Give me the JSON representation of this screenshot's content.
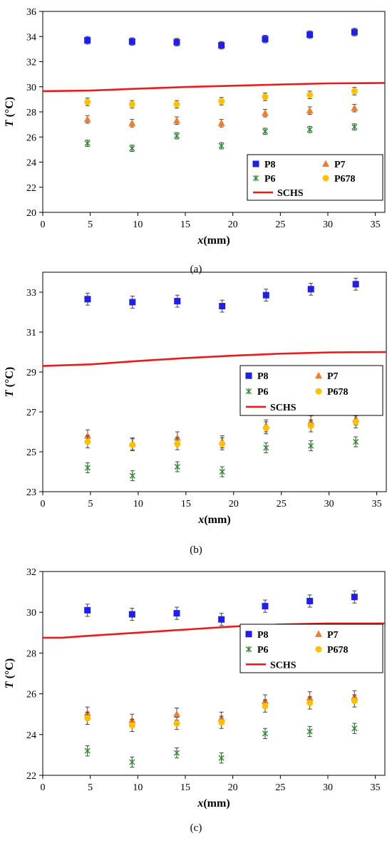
{
  "colors": {
    "P8": "#1f1fe6",
    "P7": "#ed7d31",
    "P6": "#2e8b2e",
    "P678": "#ffc000",
    "SCHS": "#e81c1c",
    "errorbar": "#444444"
  },
  "chart_data": [
    {
      "type": "scatter",
      "panel": "(a)",
      "caption": "(a)",
      "ylabel_var": "T",
      "ylabel_unit": " (°C)",
      "xlabel_var": "x",
      "xlabel_unit": "(mm)",
      "xlim": [
        0,
        36
      ],
      "ylim": [
        20,
        36
      ],
      "xticks": [
        0,
        5,
        10,
        15,
        20,
        25,
        30,
        35
      ],
      "yticks": [
        20,
        22,
        24,
        26,
        28,
        30,
        32,
        34,
        36
      ],
      "x": [
        4.7,
        9.4,
        14.1,
        18.8,
        23.4,
        28.1,
        32.8
      ],
      "series": [
        {
          "name": "P8",
          "marker": "square",
          "values": [
            33.7,
            33.6,
            33.55,
            33.3,
            33.8,
            34.15,
            34.35
          ],
          "err": [
            0.3,
            0.3,
            0.3,
            0.3,
            0.3,
            0.3,
            0.3
          ]
        },
        {
          "name": "P7",
          "marker": "triangle",
          "values": [
            27.4,
            27.1,
            27.3,
            27.1,
            27.9,
            28.1,
            28.3
          ],
          "err": [
            0.3,
            0.3,
            0.3,
            0.3,
            0.3,
            0.3,
            0.3
          ]
        },
        {
          "name": "P6",
          "marker": "star",
          "values": [
            25.5,
            25.1,
            26.1,
            25.3,
            26.45,
            26.6,
            26.8
          ],
          "err": [
            0.25,
            0.25,
            0.25,
            0.25,
            0.25,
            0.25,
            0.25
          ]
        },
        {
          "name": "P678",
          "marker": "circle",
          "values": [
            28.8,
            28.6,
            28.6,
            28.85,
            29.2,
            29.35,
            29.65
          ],
          "err": [
            0.3,
            0.3,
            0.3,
            0.3,
            0.3,
            0.3,
            0.3
          ]
        }
      ],
      "line": {
        "name": "SCHS",
        "x": [
          0,
          5,
          10,
          15,
          20,
          25,
          30,
          36
        ],
        "y": [
          29.65,
          29.7,
          29.85,
          29.98,
          30.08,
          30.18,
          30.27,
          30.3
        ]
      },
      "legend": {
        "position": "bottom-right",
        "items": [
          "P8",
          "P7",
          "P6",
          "P678",
          "SCHS"
        ]
      }
    },
    {
      "type": "scatter",
      "panel": "(b)",
      "caption": "(b)",
      "ylabel_var": "T",
      "ylabel_unit": " (°C)",
      "xlabel_var": "x",
      "xlabel_unit": "(mm)",
      "xlim": [
        0,
        36
      ],
      "ylim": [
        23,
        34
      ],
      "xticks": [
        0,
        5,
        10,
        15,
        20,
        25,
        30,
        35
      ],
      "yticks": [
        23,
        25,
        27,
        29,
        31,
        33
      ],
      "x": [
        4.7,
        9.4,
        14.1,
        18.8,
        23.4,
        28.1,
        32.8
      ],
      "series": [
        {
          "name": "P8",
          "marker": "square",
          "values": [
            32.65,
            32.5,
            32.55,
            32.3,
            32.85,
            33.15,
            33.4
          ],
          "err": [
            0.3,
            0.3,
            0.3,
            0.3,
            0.3,
            0.3,
            0.3
          ]
        },
        {
          "name": "P7",
          "marker": "triangle",
          "values": [
            25.8,
            25.4,
            25.7,
            25.5,
            26.3,
            26.5,
            26.65
          ],
          "err": [
            0.3,
            0.3,
            0.3,
            0.3,
            0.3,
            0.3,
            0.3
          ]
        },
        {
          "name": "P6",
          "marker": "star",
          "values": [
            24.2,
            23.8,
            24.25,
            24.0,
            25.2,
            25.3,
            25.5
          ],
          "err": [
            0.25,
            0.25,
            0.25,
            0.25,
            0.25,
            0.25,
            0.25
          ]
        },
        {
          "name": "P678",
          "marker": "circle",
          "values": [
            25.5,
            25.35,
            25.4,
            25.4,
            26.2,
            26.3,
            26.5
          ],
          "err": [
            0.3,
            0.3,
            0.3,
            0.3,
            0.3,
            0.3,
            0.3
          ]
        }
      ],
      "line": {
        "name": "SCHS",
        "x": [
          0,
          5,
          10,
          15,
          20,
          25,
          30,
          36
        ],
        "y": [
          29.3,
          29.38,
          29.55,
          29.7,
          29.82,
          29.92,
          29.98,
          30.0
        ]
      },
      "legend": {
        "position": "right",
        "items": [
          "P8",
          "P7",
          "P6",
          "P678",
          "SCHS"
        ]
      }
    },
    {
      "type": "scatter",
      "panel": "(c)",
      "caption": "(c)",
      "ylabel_var": "T",
      "ylabel_unit": " (°C)",
      "xlabel_var": "x",
      "xlabel_unit": "(mm)",
      "xlim": [
        0,
        36
      ],
      "ylim": [
        22,
        32
      ],
      "xticks": [
        0,
        5,
        10,
        15,
        20,
        25,
        30,
        35
      ],
      "yticks": [
        22,
        24,
        26,
        28,
        30,
        32
      ],
      "x": [
        4.7,
        9.4,
        14.1,
        18.8,
        23.4,
        28.1,
        32.8
      ],
      "series": [
        {
          "name": "P8",
          "marker": "square",
          "values": [
            30.1,
            29.9,
            29.95,
            29.65,
            30.3,
            30.55,
            30.75
          ],
          "err": [
            0.3,
            0.3,
            0.3,
            0.3,
            0.3,
            0.3,
            0.3
          ]
        },
        {
          "name": "P7",
          "marker": "triangle",
          "values": [
            25.05,
            24.7,
            25.0,
            24.8,
            25.65,
            25.8,
            25.85
          ],
          "err": [
            0.3,
            0.3,
            0.3,
            0.3,
            0.3,
            0.3,
            0.3
          ]
        },
        {
          "name": "P6",
          "marker": "star",
          "values": [
            23.2,
            22.65,
            23.1,
            22.85,
            24.05,
            24.15,
            24.3
          ],
          "err": [
            0.25,
            0.25,
            0.25,
            0.25,
            0.25,
            0.25,
            0.25
          ]
        },
        {
          "name": "P678",
          "marker": "circle",
          "values": [
            24.8,
            24.45,
            24.55,
            24.6,
            25.4,
            25.55,
            25.65
          ],
          "err": [
            0.3,
            0.3,
            0.3,
            0.3,
            0.3,
            0.3,
            0.3
          ]
        }
      ],
      "line": {
        "name": "SCHS",
        "x": [
          0,
          2,
          5,
          10,
          15,
          20,
          25,
          30,
          36
        ],
        "y": [
          28.75,
          28.75,
          28.85,
          29.0,
          29.15,
          29.3,
          29.4,
          29.45,
          29.45
        ]
      },
      "legend": {
        "position": "top-right",
        "items": [
          "P8",
          "P7",
          "P6",
          "P678",
          "SCHS"
        ]
      }
    }
  ]
}
